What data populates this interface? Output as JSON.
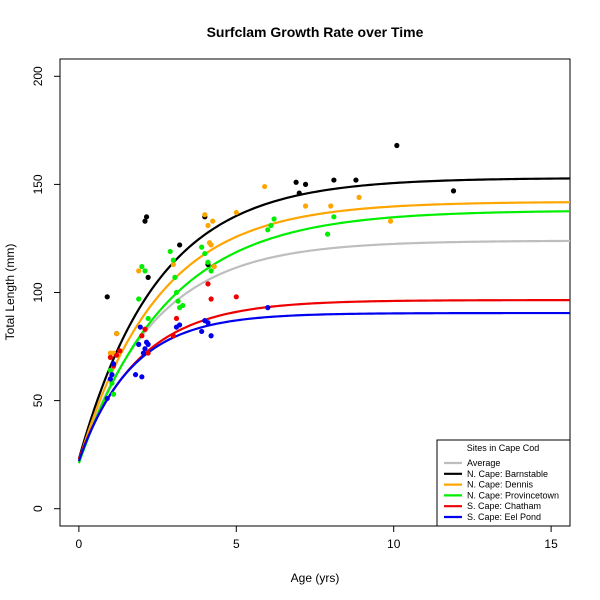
{
  "chart_data": {
    "type": "scatter",
    "title": "Surfclam Growth Rate over Time",
    "xlabel": "Age (yrs)",
    "ylabel": "Total Length (mm)",
    "xlim": [
      -0.6,
      15.6
    ],
    "ylim": [
      -8,
      208
    ],
    "xticks": [
      0,
      5,
      10,
      15
    ],
    "yticks": [
      0,
      50,
      100,
      150,
      200
    ],
    "grid": false,
    "legend": {
      "title": "Sites in Cape Cod",
      "position": "bottom-right"
    },
    "series": [
      {
        "name": "Average",
        "color": "#bebebe",
        "curve": {
          "Linf": 124,
          "K": 0.42,
          "L0": 22
        },
        "points": []
      },
      {
        "name": "N. Cape: Barnstable",
        "color": "#000000",
        "curve": {
          "Linf": 153,
          "K": 0.4,
          "L0": 23
        },
        "points": [
          [
            0.9,
            98
          ],
          [
            1.2,
            81
          ],
          [
            2.1,
            133
          ],
          [
            2.15,
            135
          ],
          [
            2.2,
            107
          ],
          [
            3.2,
            122
          ],
          [
            4.0,
            135
          ],
          [
            4.1,
            113
          ],
          [
            6.9,
            151
          ],
          [
            7.0,
            146
          ],
          [
            7.2,
            150
          ],
          [
            8.1,
            152
          ],
          [
            8.8,
            152
          ],
          [
            10.1,
            168
          ],
          [
            11.9,
            147
          ]
        ]
      },
      {
        "name": "N. Cape: Dennis",
        "color": "#ffa500",
        "curve": {
          "Linf": 142,
          "K": 0.4,
          "L0": 22
        },
        "points": [
          [
            1.0,
            72
          ],
          [
            1.1,
            72
          ],
          [
            1.2,
            81
          ],
          [
            1.9,
            110
          ],
          [
            3.0,
            113
          ],
          [
            4.0,
            136
          ],
          [
            4.1,
            131
          ],
          [
            4.15,
            123
          ],
          [
            4.2,
            122
          ],
          [
            4.25,
            133
          ],
          [
            4.3,
            112
          ],
          [
            5.0,
            137
          ],
          [
            5.9,
            149
          ],
          [
            7.2,
            140
          ],
          [
            8.0,
            140
          ],
          [
            8.9,
            144
          ],
          [
            9.9,
            133
          ]
        ]
      },
      {
        "name": "N. Cape: Provincetown",
        "color": "#00ee00",
        "curve": {
          "Linf": 138,
          "K": 0.36,
          "L0": 21
        },
        "points": [
          [
            1.0,
            64
          ],
          [
            1.05,
            58
          ],
          [
            1.1,
            53
          ],
          [
            1.9,
            97
          ],
          [
            2.0,
            112
          ],
          [
            2.1,
            110
          ],
          [
            2.2,
            88
          ],
          [
            2.9,
            119
          ],
          [
            3.0,
            115
          ],
          [
            3.05,
            107
          ],
          [
            3.1,
            100
          ],
          [
            3.15,
            96
          ],
          [
            3.2,
            93
          ],
          [
            3.3,
            94
          ],
          [
            3.9,
            121
          ],
          [
            4.0,
            118
          ],
          [
            4.1,
            114
          ],
          [
            4.2,
            110
          ],
          [
            6.0,
            129
          ],
          [
            6.1,
            131
          ],
          [
            6.2,
            134
          ],
          [
            7.9,
            127
          ],
          [
            8.1,
            135
          ]
        ]
      },
      {
        "name": "S. Cape: Chatham",
        "color": "#ee0000",
        "curve": {
          "Linf": 96.5,
          "K": 0.52,
          "L0": 23
        },
        "points": [
          [
            1.0,
            70
          ],
          [
            1.1,
            66
          ],
          [
            1.2,
            71
          ],
          [
            1.3,
            73
          ],
          [
            2.0,
            80
          ],
          [
            2.1,
            83
          ],
          [
            2.2,
            72
          ],
          [
            3.0,
            80
          ],
          [
            3.1,
            88
          ],
          [
            4.1,
            104
          ],
          [
            4.2,
            97
          ],
          [
            5.0,
            98
          ]
        ]
      },
      {
        "name": "S. Cape: Eel Pond",
        "color": "#0000ee",
        "curve": {
          "Linf": 90.5,
          "K": 0.6,
          "L0": 22
        },
        "points": [
          [
            0.9,
            51
          ],
          [
            1.0,
            60
          ],
          [
            1.05,
            62
          ],
          [
            1.1,
            67
          ],
          [
            1.8,
            62
          ],
          [
            1.9,
            76
          ],
          [
            1.95,
            84
          ],
          [
            2.0,
            61
          ],
          [
            2.05,
            72
          ],
          [
            2.1,
            74
          ],
          [
            2.15,
            77
          ],
          [
            2.2,
            76
          ],
          [
            3.1,
            84
          ],
          [
            3.2,
            85
          ],
          [
            3.9,
            82
          ],
          [
            4.0,
            87
          ],
          [
            4.1,
            86
          ],
          [
            4.2,
            80
          ],
          [
            6.0,
            93
          ]
        ]
      }
    ]
  }
}
